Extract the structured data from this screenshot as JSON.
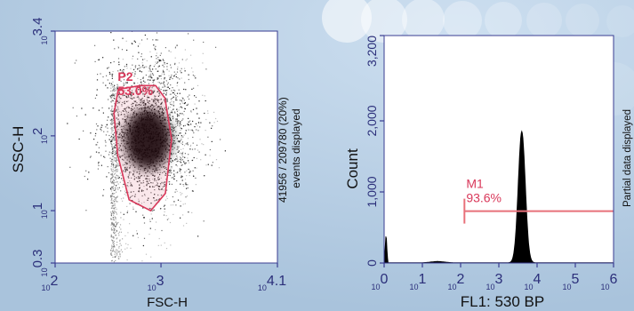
{
  "chart_data": [
    {
      "type": "scatter",
      "xlabel": "FSC-H",
      "ylabel": "SSC-H",
      "x_scale": "log",
      "y_scale": "log",
      "xlim": [
        100,
        12589
      ],
      "ylim": [
        1.995,
        2512
      ],
      "x_ticks": [
        {
          "value": 100,
          "base": "10",
          "exp": "2"
        },
        {
          "value": 1000,
          "base": "10",
          "exp": "3"
        },
        {
          "value": 12589,
          "base": "10",
          "exp": "4.1"
        }
      ],
      "y_ticks": [
        {
          "value": 1.995,
          "base": "10",
          "exp": "0.3"
        },
        {
          "value": 10,
          "base": "10",
          "exp": "1"
        },
        {
          "value": 100,
          "base": "10",
          "exp": "2"
        },
        {
          "value": 2512,
          "base": "10",
          "exp": "3.4"
        }
      ],
      "gate": {
        "name": "P2",
        "percent": "53.0%",
        "color": "#d9385a"
      },
      "population": {
        "center_x": 750,
        "center_y": 90
      },
      "side_note": [
        "41956 / 209780 (20%)",
        "events displayed"
      ]
    },
    {
      "type": "histogram",
      "xlabel": "FL1: 530 BP",
      "ylabel": "Count",
      "x_scale": "log",
      "xlim": [
        1,
        1000000
      ],
      "ylim": [
        0,
        3200
      ],
      "x_ticks": [
        {
          "value": 1,
          "base": "10",
          "exp": "0"
        },
        {
          "value": 10,
          "base": "10",
          "exp": "1"
        },
        {
          "value": 100,
          "base": "10",
          "exp": "2"
        },
        {
          "value": 1000,
          "base": "10",
          "exp": "3"
        },
        {
          "value": 10000,
          "base": "10",
          "exp": "4"
        },
        {
          "value": 100000,
          "base": "10",
          "exp": "5"
        },
        {
          "value": 1000000,
          "base": "10",
          "exp": "6"
        }
      ],
      "y_ticks": [
        "0",
        "1,000",
        "2,000",
        "3,200"
      ],
      "peak": {
        "x": 3980,
        "count": 1850
      },
      "marker": {
        "name": "M1",
        "percent": "93.6%",
        "from": 126,
        "to": 1000000,
        "color": "#e8707a"
      },
      "side_note": "Partial data displayed"
    }
  ],
  "colors": {
    "background": "#b7cfe4",
    "plot_border": "#3a3d92",
    "tick_label": "#2b2f7a",
    "gate": "#d9385a"
  }
}
